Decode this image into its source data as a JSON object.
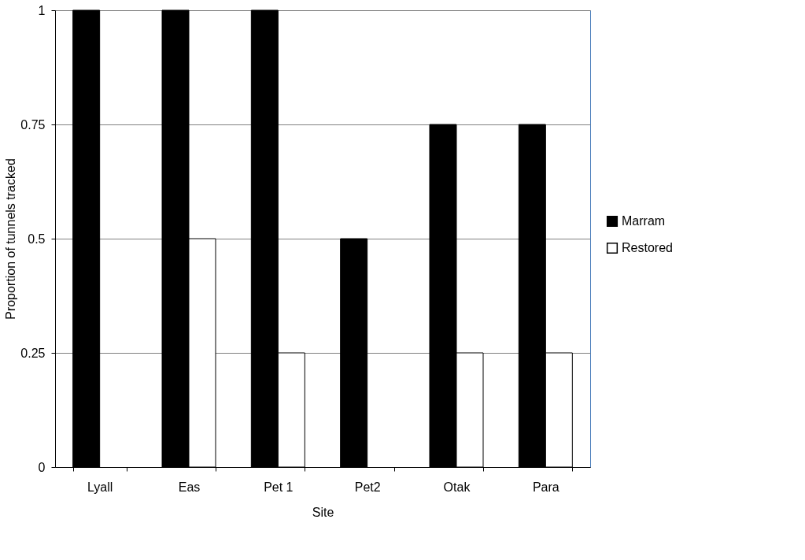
{
  "chart_data": {
    "type": "bar",
    "xlabel": "Site",
    "ylabel": "Proportion of tunnels tracked",
    "categories": [
      "Lyall",
      "Eas",
      "Pet 1",
      "Pet2",
      "Otak",
      "Para"
    ],
    "series": [
      {
        "name": "Marram",
        "color": "#000000",
        "values": [
          1,
          1,
          1,
          0.5,
          0.75,
          0.75
        ]
      },
      {
        "name": "Restored",
        "color": "#ffffff",
        "values": [
          0,
          0.5,
          0.25,
          0,
          0.25,
          0.25
        ]
      }
    ],
    "ylim": [
      0,
      1
    ],
    "yticks": [
      0,
      0.25,
      0.5,
      0.75,
      1
    ],
    "grid": "y",
    "legend": "right"
  }
}
